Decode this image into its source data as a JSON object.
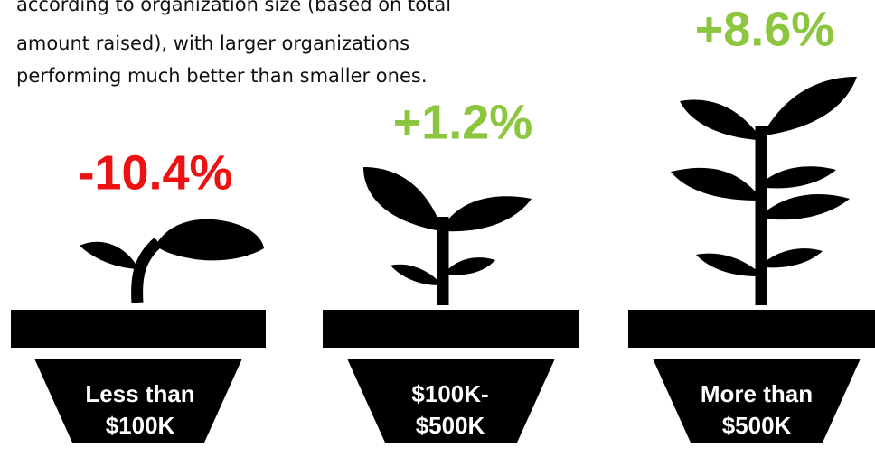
{
  "intro": {
    "lines": [
      "according to organization size (based on total",
      "amount raised), with larger organizations",
      "performing much better than smaller ones."
    ]
  },
  "items": [
    {
      "value": "-10.4%",
      "label_lines": [
        "Less than",
        "$100K"
      ]
    },
    {
      "value": "+1.2%",
      "label_lines": [
        "$100K-",
        "$500K"
      ]
    },
    {
      "value": "+8.6%",
      "label_lines": [
        "More than",
        "$500K"
      ]
    }
  ]
}
